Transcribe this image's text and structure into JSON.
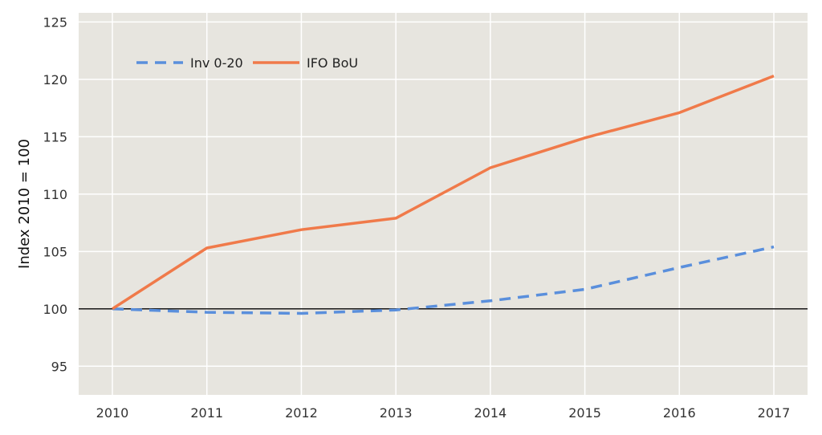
{
  "chart_data": {
    "type": "line",
    "title": "",
    "xlabel": "",
    "ylabel": "Index 2010 = 100",
    "x": [
      "2010",
      "2011",
      "2012",
      "2013",
      "2014",
      "2015",
      "2016",
      "2017"
    ],
    "ylim": [
      92.5,
      125.8
    ],
    "yticks": [
      95,
      100,
      105,
      110,
      115,
      120,
      125
    ],
    "reference_line": 100,
    "grid": true,
    "legend_position": "top-left",
    "background_color": "#e7e5df",
    "series": [
      {
        "name": "Inv 0-20",
        "color": "#5a8fdc",
        "style": "dashed",
        "values": [
          100,
          99.7,
          99.6,
          99.9,
          100.7,
          101.7,
          103.6,
          105.4
        ]
      },
      {
        "name": "IFO BoU",
        "color": "#f07a4a",
        "style": "solid",
        "values": [
          100,
          105.3,
          106.9,
          107.9,
          112.3,
          114.9,
          117.1,
          120.3
        ]
      }
    ]
  }
}
